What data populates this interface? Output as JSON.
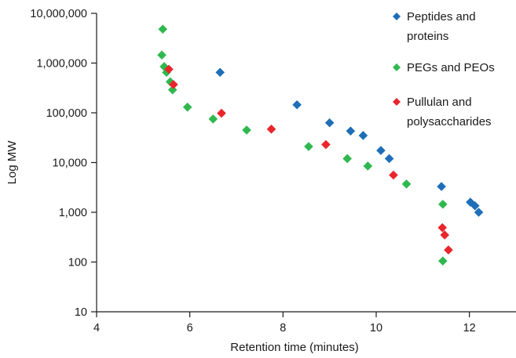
{
  "chart_data": {
    "type": "scatter",
    "xlabel": "Retention time (minutes)",
    "ylabel": "Log MW",
    "xlim": [
      4,
      13
    ],
    "ylim": [
      10,
      10000000
    ],
    "y_scale": "log",
    "x_ticks": [
      {
        "value": 4,
        "label": "4"
      },
      {
        "value": 6,
        "label": "6"
      },
      {
        "value": 8,
        "label": "8"
      },
      {
        "value": 10,
        "label": "10"
      },
      {
        "value": 12,
        "label": "12"
      }
    ],
    "y_ticks": [
      {
        "value": 10,
        "label": "10"
      },
      {
        "value": 100,
        "label": "100"
      },
      {
        "value": 1000,
        "label": "1,000"
      },
      {
        "value": 10000,
        "label": "10,000"
      },
      {
        "value": 100000,
        "label": "100,000"
      },
      {
        "value": 1000000,
        "label": "1,000,000"
      },
      {
        "value": 10000000,
        "label": "10,000,000"
      }
    ],
    "grid": false,
    "legend_position": "top-right",
    "series": [
      {
        "name": "Peptides and proteins",
        "legend_lines": [
          "Peptides and",
          "proteins"
        ],
        "color": "#1f6fb8",
        "points": [
          [
            6.65,
            650000
          ],
          [
            8.3,
            145000
          ],
          [
            9.0,
            63000
          ],
          [
            9.45,
            43000
          ],
          [
            9.72,
            35000
          ],
          [
            10.1,
            17500
          ],
          [
            10.28,
            12000
          ],
          [
            11.4,
            3300
          ],
          [
            12.02,
            1600
          ],
          [
            12.12,
            1350
          ],
          [
            12.2,
            1000
          ]
        ]
      },
      {
        "name": "PEGs and PEOs",
        "legend_lines": [
          "PEGs and PEOs"
        ],
        "color": "#2fb84f",
        "points": [
          [
            5.42,
            4800000
          ],
          [
            5.4,
            1450000
          ],
          [
            5.45,
            850000
          ],
          [
            5.5,
            650000
          ],
          [
            5.58,
            420000
          ],
          [
            5.63,
            290000
          ],
          [
            5.95,
            130000
          ],
          [
            6.5,
            75000
          ],
          [
            7.22,
            45000
          ],
          [
            8.55,
            21000
          ],
          [
            9.38,
            12000
          ],
          [
            9.82,
            8500
          ],
          [
            10.65,
            3700
          ],
          [
            11.43,
            1450
          ],
          [
            11.43,
            105
          ]
        ]
      },
      {
        "name": "Pullulan and polysaccharides",
        "legend_lines": [
          "Pullulan and",
          "polysaccharides"
        ],
        "color": "#e8262b",
        "points": [
          [
            5.55,
            750000
          ],
          [
            5.65,
            370000
          ],
          [
            6.68,
            98000
          ],
          [
            7.75,
            47000
          ],
          [
            8.92,
            23000
          ],
          [
            10.37,
            5600
          ],
          [
            11.42,
            490
          ],
          [
            11.47,
            350
          ],
          [
            11.55,
            175
          ]
        ]
      }
    ]
  }
}
